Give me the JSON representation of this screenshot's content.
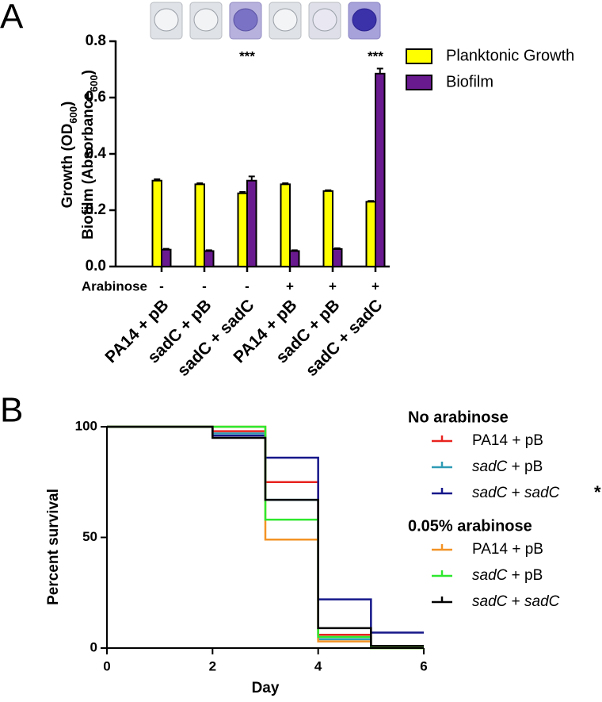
{
  "chart_data": [
    {
      "type": "bar",
      "panel": "A",
      "ylabel": [
        [
          "Growth (OD",
          "600",
          ")"
        ],
        [
          "Biofilm (Absorbance",
          "600",
          ")"
        ]
      ],
      "categories": [
        "PA14 + pB",
        "sadC + pB",
        "sadC + sadC",
        "PA14 + pB",
        "sadC + pB",
        "sadC + sadC"
      ],
      "row_label": "Arabinose",
      "row_values": [
        "-",
        "-",
        "-",
        "+",
        "+",
        "+"
      ],
      "significance": [
        null,
        null,
        "***",
        null,
        null,
        "***"
      ],
      "series": [
        {
          "name": "Planktonic Growth",
          "color": "#ffff00",
          "values": [
            0.305,
            0.292,
            0.26,
            0.292,
            0.268,
            0.23
          ],
          "errors": [
            0.005,
            0.004,
            0.005,
            0.004,
            0.003,
            0.003
          ]
        },
        {
          "name": "Biofilm",
          "color": "#6a1a8f",
          "values": [
            0.06,
            0.055,
            0.305,
            0.055,
            0.062,
            0.685
          ],
          "errors": [
            0.003,
            0.003,
            0.015,
            0.003,
            0.003,
            0.018
          ]
        }
      ],
      "ylim": [
        0,
        0.8
      ],
      "yticks": [
        {
          "value": 0,
          "label": "0.0"
        },
        0.2,
        0.4,
        0.6,
        0.8
      ]
    },
    {
      "type": "step",
      "panel": "B",
      "xlabel": "Day",
      "ylabel": "Percent survival",
      "x": [
        0,
        2,
        3,
        4,
        5,
        6
      ],
      "groups": [
        {
          "title": "No arabinose",
          "series": [
            {
              "name": "PA14 + pB",
              "color": "#e8231f",
              "values": [
                100,
                98,
                75,
                6,
                0,
                0
              ]
            },
            {
              "name": "sadC + pB",
              "color": "#2f9bb5",
              "values": [
                100,
                97,
                67,
                4,
                0,
                0
              ]
            },
            {
              "name": "sadC + sadC",
              "color": "#15178a",
              "values": [
                100,
                96,
                86,
                22,
                7,
                7
              ],
              "note": "*"
            }
          ]
        },
        {
          "title": "0.05% arabinose",
          "series": [
            {
              "name": "PA14 + pB",
              "color": "#f39325",
              "values": [
                100,
                100,
                49,
                3,
                0,
                0
              ]
            },
            {
              "name": "sadC + pB",
              "color": "#2ee82e",
              "values": [
                100,
                100,
                58,
                5,
                0,
                0
              ]
            },
            {
              "name": "sadC + sadC",
              "color": "#000000",
              "values": [
                100,
                95,
                67,
                9,
                1,
                1
              ]
            }
          ]
        }
      ],
      "xlim": [
        0,
        6
      ],
      "xticks": [
        0,
        2,
        4,
        6
      ],
      "ylim": [
        0,
        100
      ],
      "yticks": [
        0,
        50,
        100
      ]
    }
  ]
}
